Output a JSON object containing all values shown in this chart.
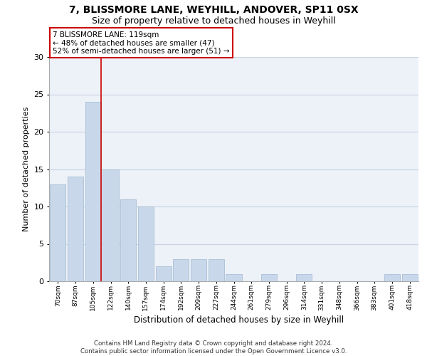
{
  "title_line1": "7, BLISSMORE LANE, WEYHILL, ANDOVER, SP11 0SX",
  "title_line2": "Size of property relative to detached houses in Weyhill",
  "xlabel": "Distribution of detached houses by size in Weyhill",
  "ylabel": "Number of detached properties",
  "footer_line1": "Contains HM Land Registry data © Crown copyright and database right 2024.",
  "footer_line2": "Contains public sector information licensed under the Open Government Licence v3.0.",
  "bin_labels": [
    "70sqm",
    "87sqm",
    "105sqm",
    "122sqm",
    "140sqm",
    "157sqm",
    "174sqm",
    "192sqm",
    "209sqm",
    "227sqm",
    "244sqm",
    "261sqm",
    "279sqm",
    "296sqm",
    "314sqm",
    "331sqm",
    "348sqm",
    "366sqm",
    "383sqm",
    "401sqm",
    "418sqm"
  ],
  "bar_values": [
    13,
    14,
    24,
    15,
    11,
    10,
    2,
    3,
    3,
    3,
    1,
    0,
    1,
    0,
    1,
    0,
    0,
    0,
    0,
    1,
    1
  ],
  "bar_color": "#c8d8ea",
  "bar_edgecolor": "#a0b8d0",
  "grid_color": "#c8d4e4",
  "background_color": "#edf1f8",
  "annotation_text": "7 BLISSMORE LANE: 119sqm\n← 48% of detached houses are smaller (47)\n52% of semi-detached houses are larger (51) →",
  "red_line_bin_idx": 2,
  "ylim": [
    0,
    30
  ],
  "yticks": [
    0,
    5,
    10,
    15,
    20,
    25,
    30
  ]
}
